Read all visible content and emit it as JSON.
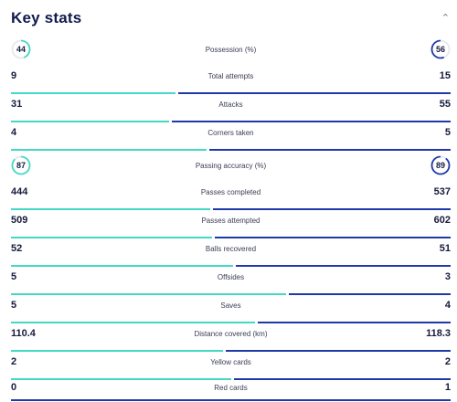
{
  "header": {
    "title": "Key stats",
    "collapse_icon": "chevron-up-icon"
  },
  "colors": {
    "home": "#45d8c4",
    "away": "#1f3aa8",
    "ring_track": "#e6e8f0"
  },
  "rings": [
    {
      "label": "Possession (%)",
      "home": "44",
      "away": "56",
      "home_pct": 44,
      "away_pct": 56
    },
    {
      "label": "Passing accuracy (%)",
      "home": "87",
      "away": "89",
      "home_pct": 87,
      "away_pct": 89
    }
  ],
  "stats": [
    {
      "label": "Total attempts",
      "home": "9",
      "away": "15",
      "home_share": 0.375
    },
    {
      "label": "Attacks",
      "home": "31",
      "away": "55",
      "home_share": 0.36
    },
    {
      "label": "Corners taken",
      "home": "4",
      "away": "5",
      "home_share": 0.444
    },
    {
      "label": "Passes completed",
      "home": "444",
      "away": "537",
      "home_share": 0.453
    },
    {
      "label": "Passes attempted",
      "home": "509",
      "away": "602",
      "home_share": 0.458
    },
    {
      "label": "Balls recovered",
      "home": "52",
      "away": "51",
      "home_share": 0.505
    },
    {
      "label": "Offsides",
      "home": "5",
      "away": "3",
      "home_share": 0.625
    },
    {
      "label": "Saves",
      "home": "5",
      "away": "4",
      "home_share": 0.556
    },
    {
      "label": "Distance covered (km)",
      "home": "110.4",
      "away": "118.3",
      "home_share": 0.483
    },
    {
      "label": "Yellow cards",
      "home": "2",
      "away": "2",
      "home_share": 0.5
    },
    {
      "label": "Red cards",
      "home": "0",
      "away": "1",
      "home_share": 0.0
    }
  ]
}
